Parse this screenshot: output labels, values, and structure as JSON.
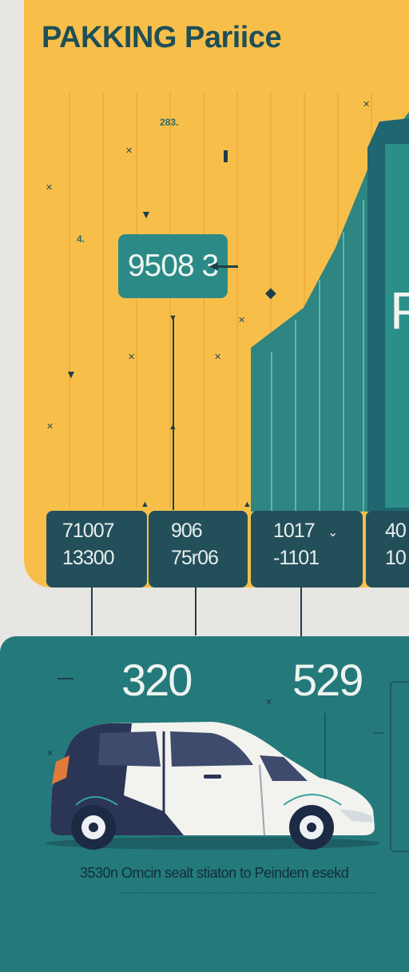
{
  "header": {
    "title": "PAKKING Pariice"
  },
  "top_labels": {
    "label_a": "283.",
    "label_b": "4."
  },
  "highlight": {
    "value": "9508 3"
  },
  "building": {
    "sign": "P"
  },
  "cards": [
    {
      "line1": "71007",
      "line2": "13300"
    },
    {
      "line1": "906",
      "line2": "75r06"
    },
    {
      "line1": "1017",
      "line2": "-1101"
    },
    {
      "line1": "40",
      "line2": "10"
    }
  ],
  "stats": {
    "left": "320",
    "right": "529"
  },
  "footer": {
    "caption": "3530n  Omcin sealt stiaton to Peindem esekd"
  },
  "colors": {
    "yellow": "#f7bf4a",
    "teal_dark": "#234f5a",
    "teal": "#24797b",
    "card_teal": "#2c8a86",
    "title": "#1f4f57"
  }
}
